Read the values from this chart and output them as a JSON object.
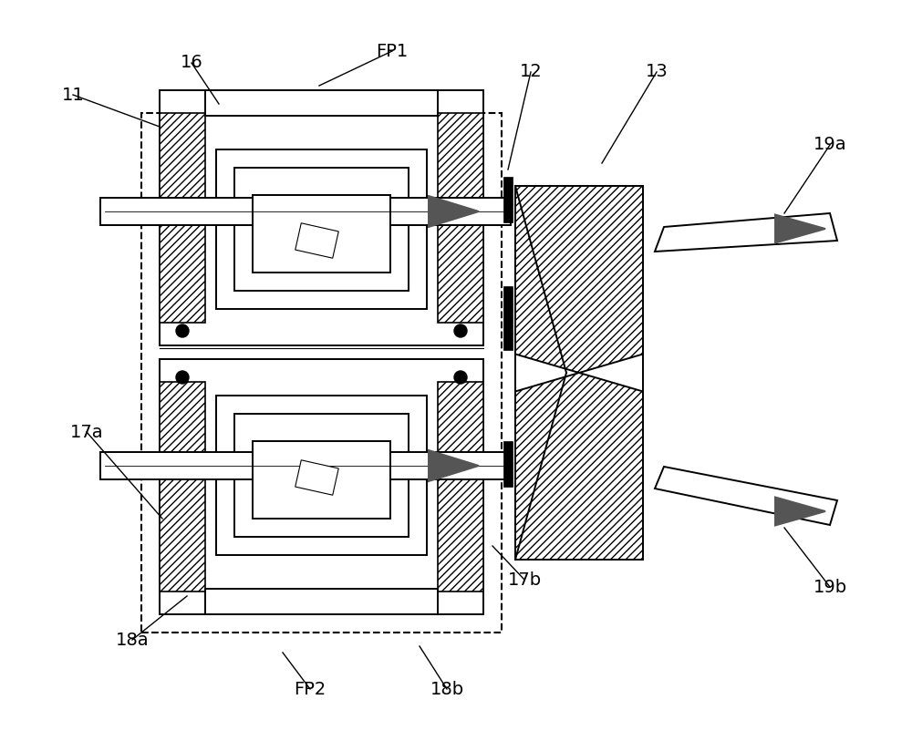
{
  "bg_color": "#ffffff",
  "lc": "#000000",
  "ac": "#555555",
  "lw_main": 1.4,
  "lw_thin": 0.8,
  "fs_label": 14,
  "fig_w": 10.0,
  "fig_h": 8.24,
  "xlim": [
    0,
    10
  ],
  "ylim": [
    0,
    8.24
  ]
}
